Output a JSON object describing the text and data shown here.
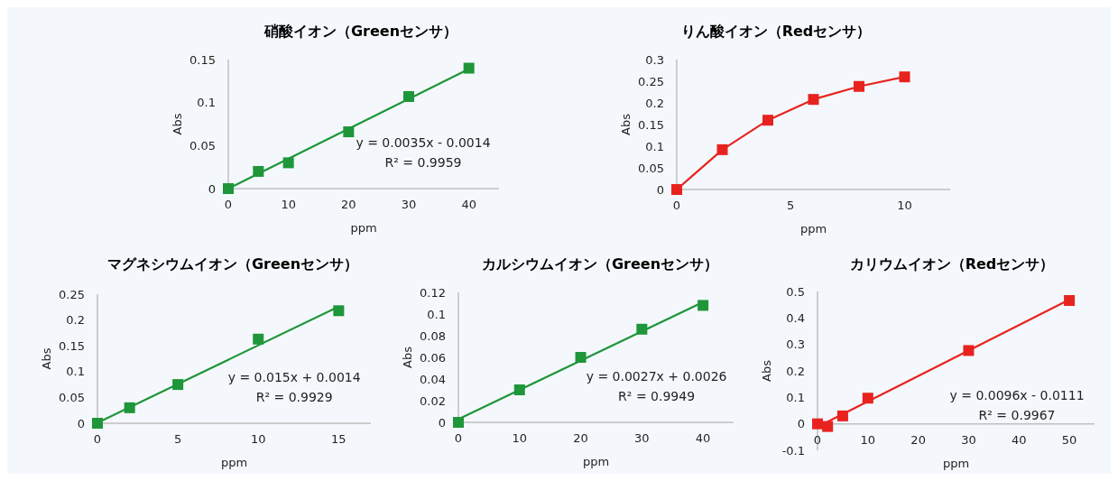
{
  "chart_data": [
    {
      "type": "scatter",
      "title": "硝酸イオン（Greenセンサ）",
      "xlabel": "ppm",
      "ylabel": "Abs",
      "marker": "square",
      "xlim": [
        0,
        45
      ],
      "xticks": [
        0,
        10,
        20,
        30,
        40
      ],
      "ylim": [
        0,
        0.15
      ],
      "yticks": [
        0,
        0.05,
        0.1,
        0.15
      ],
      "annotations": [
        "y = 0.0035x - 0.0014",
        "R² = 0.9959"
      ],
      "series": [
        {
          "color": "#1e9639",
          "x": [
            0,
            5,
            10,
            20,
            30,
            40
          ],
          "values": [
            0,
            0.02,
            0.03,
            0.066,
            0.107,
            0.14
          ]
        },
        {
          "type": "line",
          "color": "#1e9639",
          "marker": "none",
          "x": [
            0,
            40
          ],
          "values": [
            0,
            0.139
          ]
        }
      ]
    },
    {
      "type": "line",
      "title": "りん酸イオン（Redセンサ）",
      "xlabel": "ppm",
      "ylabel": "Abs",
      "marker": "square",
      "xlim": [
        0,
        12
      ],
      "xticks": [
        0,
        5,
        10
      ],
      "ylim": [
        0,
        0.3
      ],
      "yticks": [
        0,
        0.05,
        0.1,
        0.15,
        0.2,
        0.25,
        0.3
      ],
      "series": [
        {
          "color": "#e8231f",
          "x": [
            0,
            2,
            4,
            6,
            8,
            10
          ],
          "values": [
            0,
            0.092,
            0.16,
            0.208,
            0.238,
            0.26
          ]
        }
      ]
    },
    {
      "type": "scatter",
      "title": "マグネシウムイオン（Greenセンサ）",
      "xlabel": "ppm",
      "ylabel": "Abs",
      "marker": "square",
      "xlim": [
        0,
        17
      ],
      "xticks": [
        0,
        5,
        10,
        15
      ],
      "ylim": [
        0,
        0.25
      ],
      "yticks": [
        0,
        0.05,
        0.1,
        0.15,
        0.2,
        0.25
      ],
      "annotations": [
        "y = 0.015x + 0.0014",
        "R² = 0.9929"
      ],
      "series": [
        {
          "color": "#1e9639",
          "x": [
            0,
            2,
            5,
            10,
            15
          ],
          "values": [
            0,
            0.03,
            0.075,
            0.163,
            0.218
          ]
        },
        {
          "type": "line",
          "color": "#1e9639",
          "marker": "none",
          "x": [
            0,
            15
          ],
          "values": [
            0.001,
            0.226
          ]
        }
      ]
    },
    {
      "type": "scatter",
      "title": "カルシウムイオン（Greenセンサ）",
      "xlabel": "ppm",
      "ylabel": "Abs",
      "marker": "square",
      "xlim": [
        0,
        45
      ],
      "xticks": [
        0,
        10,
        20,
        30,
        40
      ],
      "ylim": [
        0,
        0.12
      ],
      "yticks": [
        0,
        0.02,
        0.04,
        0.06,
        0.08,
        0.1,
        0.12
      ],
      "annotations": [
        "y = 0.0027x + 0.0026",
        "R² = 0.9949"
      ],
      "series": [
        {
          "color": "#1e9639",
          "x": [
            0,
            10,
            20,
            30,
            40
          ],
          "values": [
            0,
            0.03,
            0.06,
            0.086,
            0.108
          ]
        },
        {
          "type": "line",
          "color": "#1e9639",
          "marker": "none",
          "x": [
            0,
            40
          ],
          "values": [
            0.003,
            0.111
          ]
        }
      ]
    },
    {
      "type": "scatter",
      "title": "カリウムイオン（Redセンサ）",
      "xlabel": "ppm",
      "ylabel": "Abs",
      "marker": "square",
      "xlim": [
        0,
        55
      ],
      "xticks": [
        0,
        10,
        20,
        30,
        40,
        50
      ],
      "ylim": [
        -0.1,
        0.5
      ],
      "yticks": [
        -0.1,
        0,
        0.1,
        0.2,
        0.3,
        0.4,
        0.5
      ],
      "annotations": [
        "y = 0.0096x - 0.0111",
        "R² = 0.9967"
      ],
      "series": [
        {
          "color": "#e8231f",
          "x": [
            0,
            2,
            5,
            10,
            30,
            50
          ],
          "values": [
            0,
            -0.01,
            0.03,
            0.097,
            0.277,
            0.466
          ]
        },
        {
          "type": "line",
          "color": "#e8231f",
          "marker": "none",
          "x": [
            1.5,
            50
          ],
          "values": [
            0.003,
            0.469
          ]
        }
      ]
    }
  ]
}
